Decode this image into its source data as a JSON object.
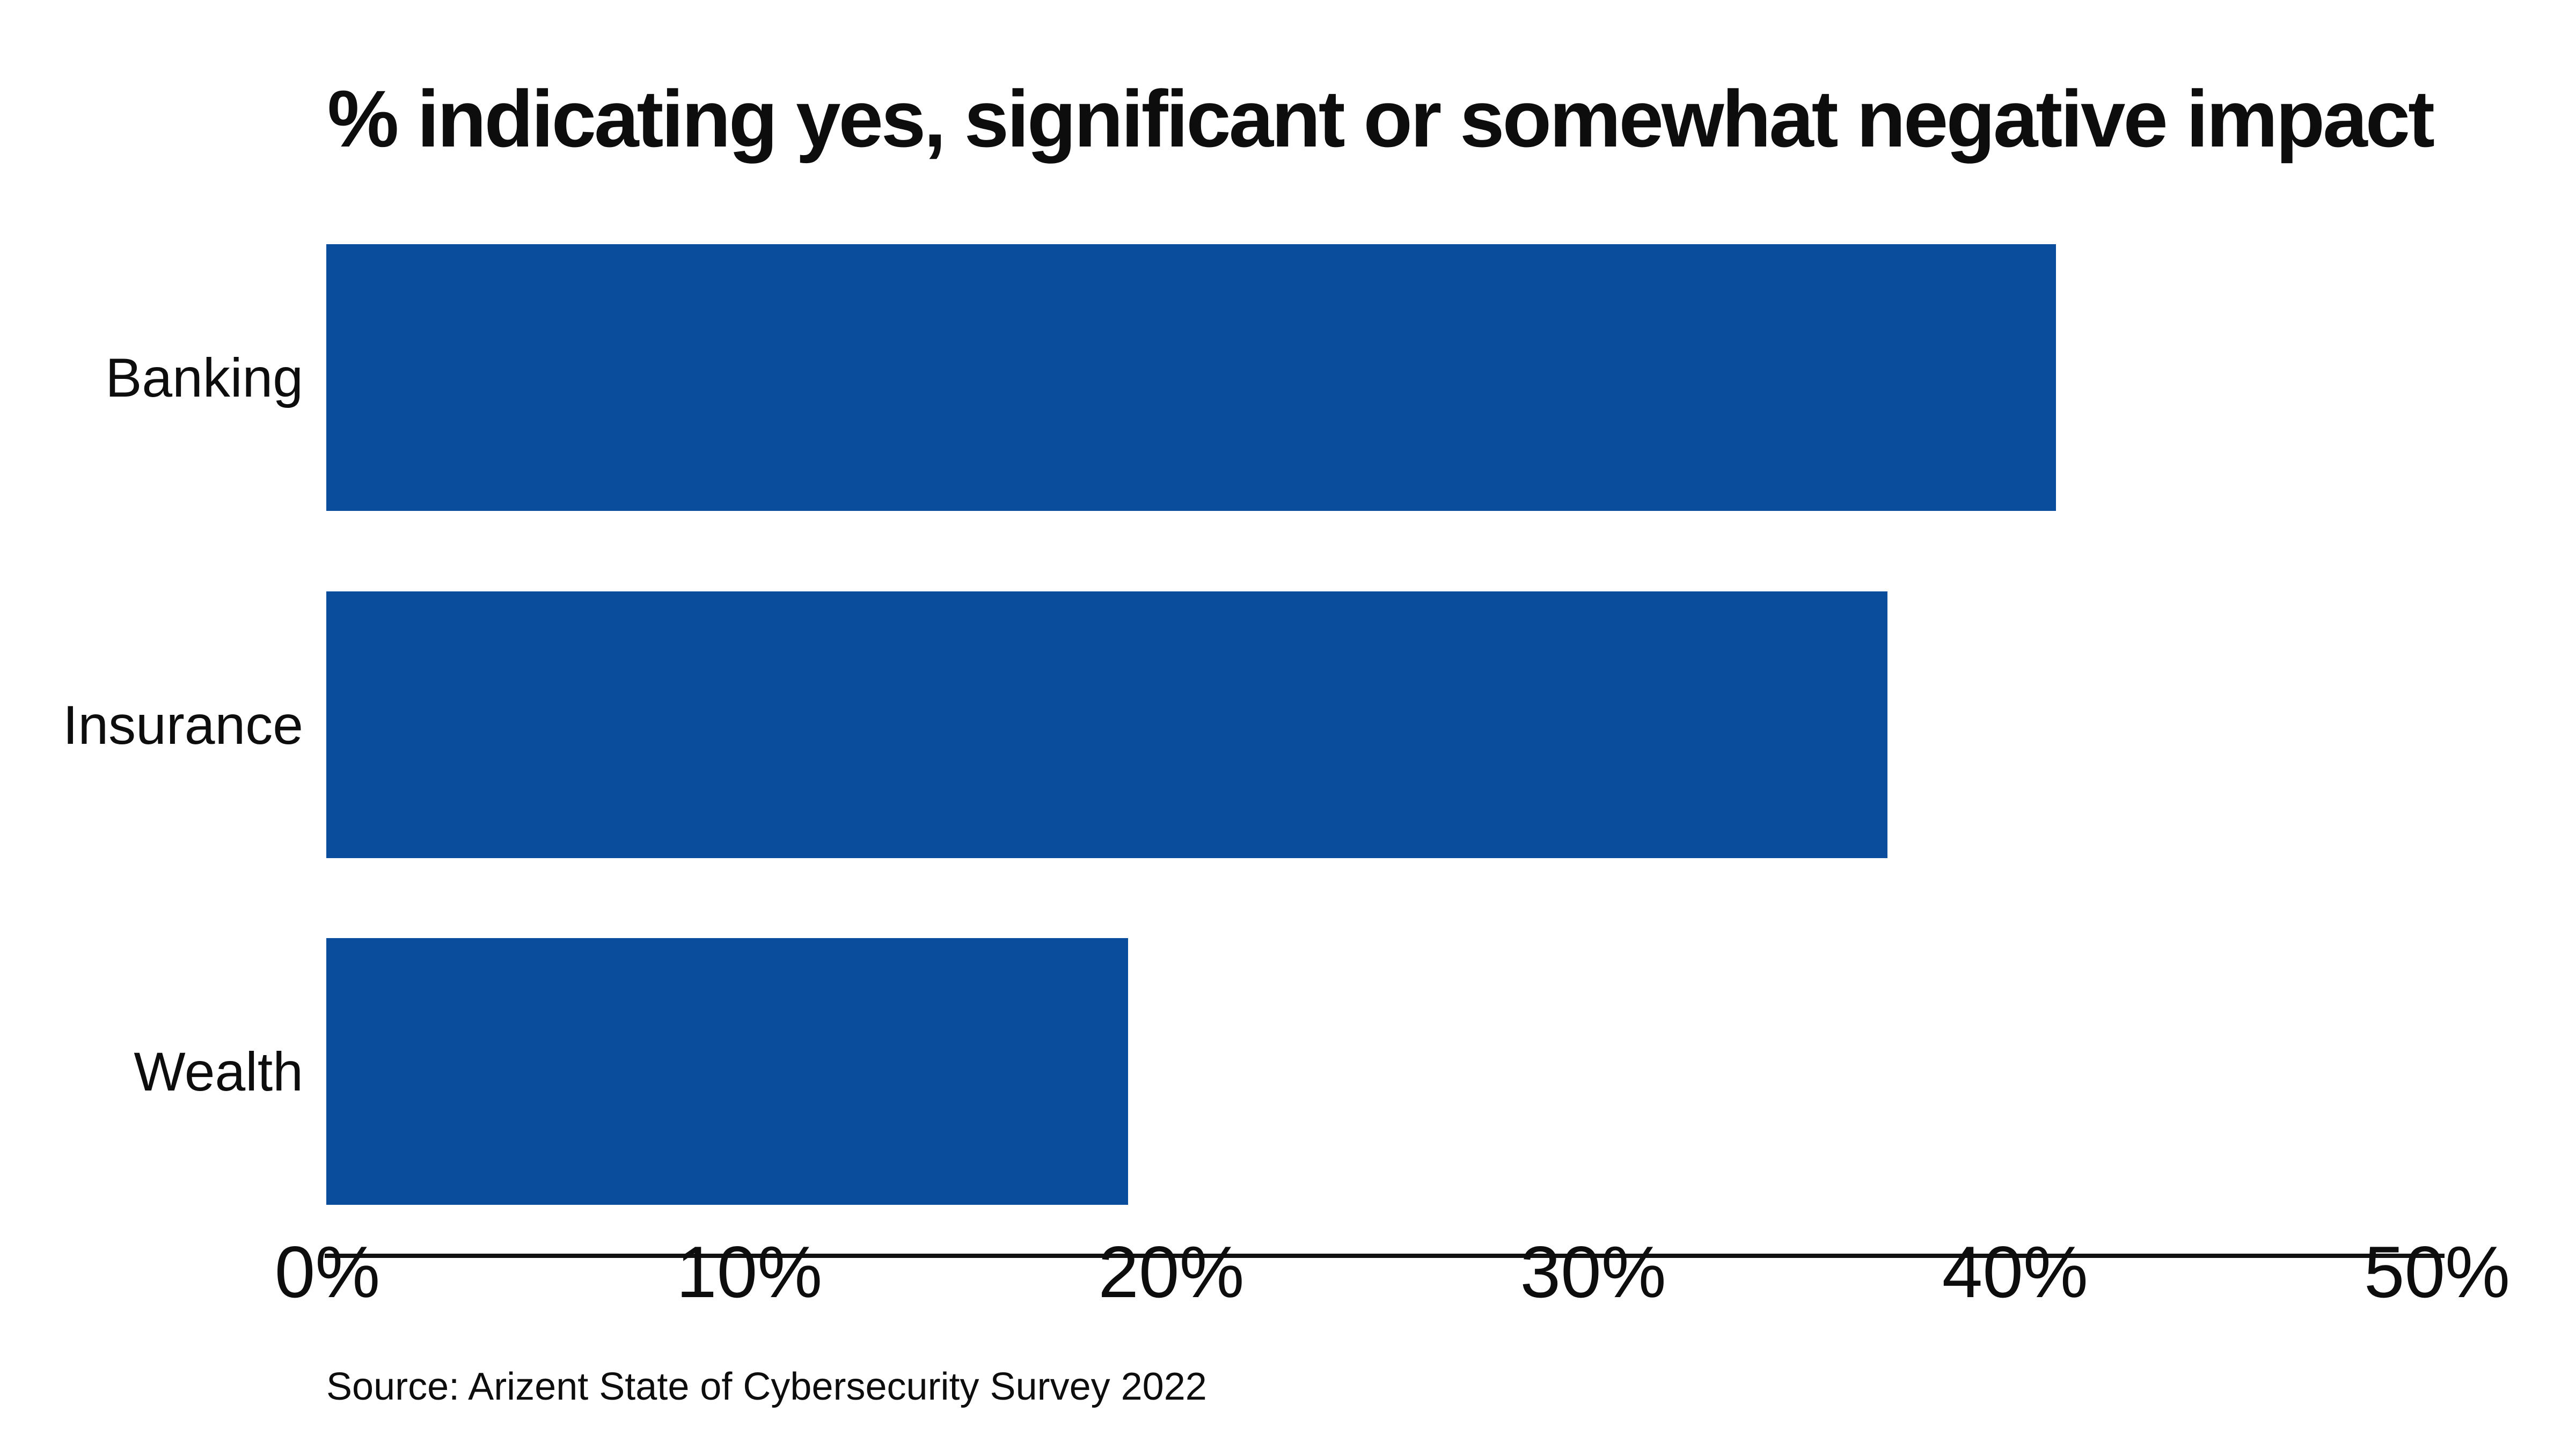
{
  "chart_data": {
    "type": "bar",
    "orientation": "horizontal",
    "title": "% indicating yes, significant or somewhat negative impact",
    "categories": [
      "Banking",
      "Insurance",
      "Wealth"
    ],
    "values": [
      41,
      37,
      19
    ],
    "value_unit": "%",
    "xlim": [
      0,
      50
    ],
    "x_tick_labels": [
      "0%",
      "10%",
      "20%",
      "30%",
      "40%",
      "50%"
    ],
    "grid": false,
    "legend": false,
    "source": "Source: Arizent State of Cybersecurity Survey 2022"
  },
  "colors": {
    "bar": "#0a4d9c",
    "axis": "#111111",
    "text": "#0d0d0d",
    "background": "#ffffff"
  }
}
